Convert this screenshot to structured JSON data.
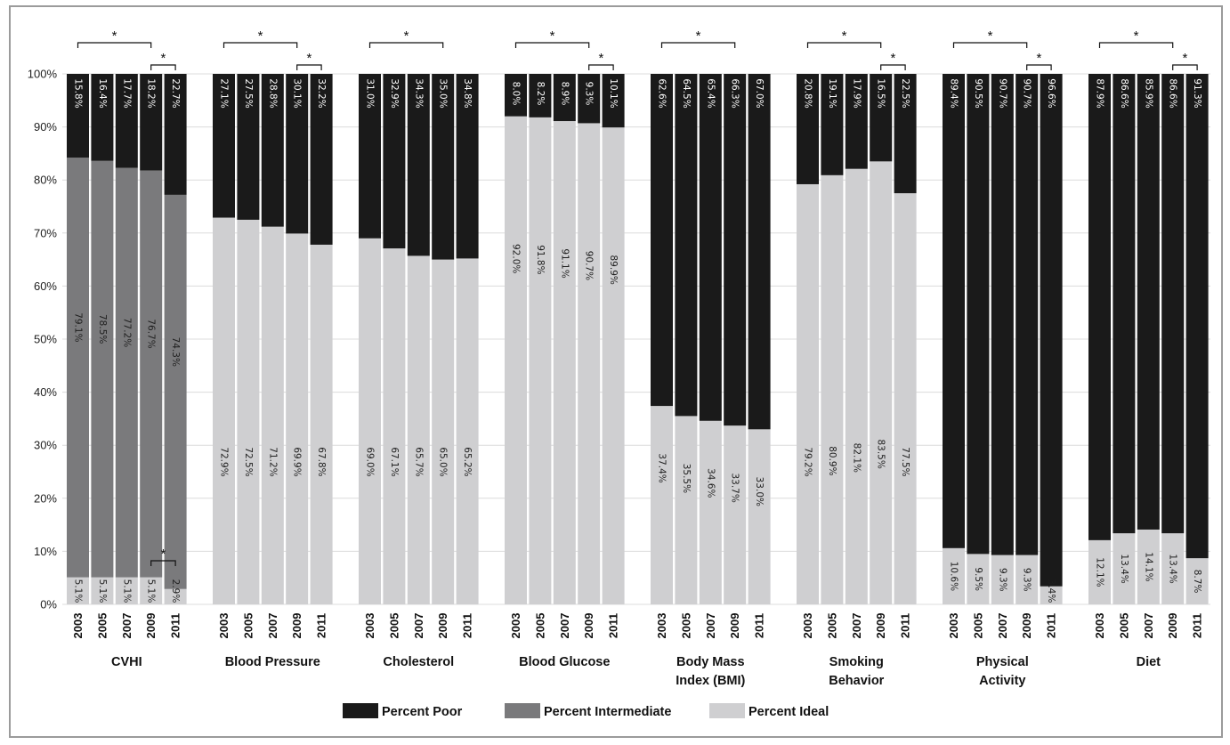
{
  "chart_data": {
    "type": "bar",
    "stacked": true,
    "orientation": "vertical",
    "title": "",
    "xlabel": "",
    "ylabel": "",
    "ylim": [
      0,
      100
    ],
    "y_ticks": [
      "0%",
      "10%",
      "20%",
      "30%",
      "40%",
      "50%",
      "60%",
      "70%",
      "80%",
      "90%",
      "100%"
    ],
    "grid": true,
    "legend_position": "bottom",
    "significance_marker": "*",
    "colors": {
      "poor": "#1a1a1a",
      "intermediate": "#7a7a7c",
      "ideal": "#cfcfd1"
    },
    "legend": [
      {
        "key": "poor",
        "label": "Percent Poor"
      },
      {
        "key": "intermediate",
        "label": "Percent Intermediate"
      },
      {
        "key": "ideal",
        "label": "Percent Ideal"
      }
    ],
    "groups": [
      {
        "name": "CVHI",
        "name_lines": [
          "CVHI"
        ],
        "years": [
          "2003",
          "2005",
          "2007",
          "2009",
          "2011"
        ],
        "ideal": [
          5.1,
          5.1,
          5.1,
          5.1,
          2.9
        ],
        "intermediate": [
          79.1,
          78.5,
          77.2,
          76.7,
          74.3
        ],
        "poor": [
          15.8,
          16.4,
          17.7,
          18.2,
          22.7
        ],
        "ideal_labels": [
          "5.1%",
          "5.1%",
          "5.1%",
          "5.1%",
          "2.9%"
        ],
        "intermediate_labels": [
          "79.1%",
          "78.5%",
          "77.2%",
          "76.7%",
          "74.3%"
        ],
        "poor_labels": [
          "15.8%",
          "16.4%",
          "17.7%",
          "18.2%",
          "22.7%"
        ],
        "brackets": [
          {
            "from": 0,
            "to": 3,
            "pos": "top-high"
          },
          {
            "from": 3,
            "to": 4,
            "pos": "top-low"
          },
          {
            "from": 3,
            "to": 4,
            "pos": "bottom"
          }
        ]
      },
      {
        "name": "Blood Pressure",
        "name_lines": [
          "Blood Pressure"
        ],
        "years": [
          "2003",
          "2005",
          "2007",
          "2009",
          "2011"
        ],
        "ideal": [
          72.9,
          72.5,
          71.2,
          69.9,
          67.8
        ],
        "poor": [
          27.1,
          27.5,
          28.8,
          30.1,
          32.2
        ],
        "ideal_labels": [
          "72.9%",
          "72.5%",
          "71.2%",
          "69.9%",
          "67.8%"
        ],
        "poor_labels": [
          "27.1%",
          "27.5%",
          "28.8%",
          "30.1%",
          "32.2%"
        ],
        "brackets": [
          {
            "from": 0,
            "to": 3,
            "pos": "top-high"
          },
          {
            "from": 3,
            "to": 4,
            "pos": "top-low"
          }
        ]
      },
      {
        "name": "Cholesterol",
        "name_lines": [
          "Cholesterol"
        ],
        "years": [
          "2003",
          "2005",
          "2007",
          "2009",
          "2011"
        ],
        "ideal": [
          69.0,
          67.1,
          65.7,
          65.0,
          65.2
        ],
        "poor": [
          31.0,
          32.9,
          34.3,
          35.0,
          34.8
        ],
        "ideal_labels": [
          "69.0%",
          "67.1%",
          "65.7%",
          "65.0%",
          "65.2%"
        ],
        "poor_labels": [
          "31.0%",
          "32.9%",
          "34.3%",
          "35.0%",
          "34.8%"
        ],
        "brackets": [
          {
            "from": 0,
            "to": 3,
            "pos": "top-high"
          }
        ]
      },
      {
        "name": "Blood Glucose",
        "name_lines": [
          "Blood Glucose"
        ],
        "years": [
          "2003",
          "2005",
          "2007",
          "2009",
          "2011"
        ],
        "ideal": [
          92.0,
          91.8,
          91.1,
          90.7,
          89.9
        ],
        "poor": [
          8.0,
          8.2,
          8.9,
          9.3,
          10.1
        ],
        "ideal_labels": [
          "92.0%",
          "91.8%",
          "91.1%",
          "90.7%",
          "89.9%"
        ],
        "poor_labels": [
          "8.0%",
          "8.2%",
          "8.9%",
          "9.3%",
          "10.1%"
        ],
        "brackets": [
          {
            "from": 0,
            "to": 3,
            "pos": "top-high"
          },
          {
            "from": 3,
            "to": 4,
            "pos": "top-low"
          }
        ]
      },
      {
        "name": "Body Mass Index (BMI)",
        "name_lines": [
          "Body Mass",
          "Index (BMI)"
        ],
        "years": [
          "2003",
          "2005",
          "2007",
          "2009",
          "2011"
        ],
        "ideal": [
          37.4,
          35.5,
          34.6,
          33.7,
          33.0
        ],
        "poor": [
          62.6,
          64.5,
          65.4,
          66.3,
          67.0
        ],
        "ideal_labels": [
          "37.4%",
          "35.5%",
          "34.6%",
          "33.7%",
          "33.0%"
        ],
        "poor_labels": [
          "62.6%",
          "64.5%",
          "65.4%",
          "66.3%",
          "67.0%"
        ],
        "brackets": [
          {
            "from": 0,
            "to": 3,
            "pos": "top-high"
          }
        ]
      },
      {
        "name": "Smoking Behavior",
        "name_lines": [
          "Smoking",
          "Behavior"
        ],
        "years": [
          "2003",
          "2005",
          "2007",
          "2009",
          "2011"
        ],
        "ideal": [
          79.2,
          80.9,
          82.1,
          83.5,
          77.5
        ],
        "poor": [
          20.8,
          19.1,
          17.9,
          16.5,
          22.5
        ],
        "ideal_labels": [
          "79.2%",
          "80.9%",
          "82.1%",
          "83.5%",
          "77.5%"
        ],
        "poor_labels": [
          "20.8%",
          "19.1%",
          "17.9%",
          "16.5%",
          "22.5%"
        ],
        "brackets": [
          {
            "from": 0,
            "to": 3,
            "pos": "top-high"
          },
          {
            "from": 3,
            "to": 4,
            "pos": "top-low"
          }
        ]
      },
      {
        "name": "Physical Activity",
        "name_lines": [
          "Physical",
          "Activity"
        ],
        "years": [
          "2003",
          "2005",
          "2007",
          "2009",
          "2011"
        ],
        "ideal": [
          10.6,
          9.5,
          9.3,
          9.3,
          3.4
        ],
        "poor": [
          89.4,
          90.5,
          90.7,
          90.7,
          96.6
        ],
        "ideal_labels": [
          "10.6%",
          "9.5%",
          "9.3%",
          "9.3%",
          "3.4%"
        ],
        "poor_labels": [
          "89.4%",
          "90.5%",
          "90.7%",
          "90.7%",
          "96.6%"
        ],
        "brackets": [
          {
            "from": 0,
            "to": 3,
            "pos": "top-high"
          },
          {
            "from": 3,
            "to": 4,
            "pos": "top-low"
          }
        ]
      },
      {
        "name": "Diet",
        "name_lines": [
          "Diet"
        ],
        "years": [
          "2003",
          "2005",
          "2007",
          "2009",
          "2011"
        ],
        "ideal": [
          12.1,
          13.4,
          14.1,
          13.4,
          8.7
        ],
        "poor": [
          87.9,
          86.6,
          85.9,
          86.6,
          91.3
        ],
        "ideal_labels": [
          "12.1%",
          "13.4%",
          "14.1%",
          "13.4%",
          "8.7%"
        ],
        "poor_labels": [
          "87.9%",
          "86.6%",
          "85.9%",
          "86.6%",
          "91.3%"
        ],
        "brackets": [
          {
            "from": 0,
            "to": 3,
            "pos": "top-high"
          },
          {
            "from": 3,
            "to": 4,
            "pos": "top-low"
          }
        ]
      }
    ]
  }
}
